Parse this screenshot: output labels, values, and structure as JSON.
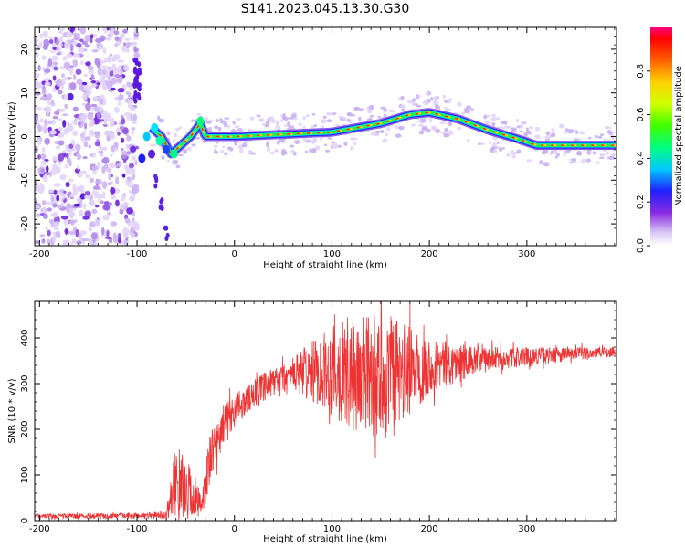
{
  "title": "S141.2023.045.13.30.G30",
  "chart_data": [
    {
      "type": "heatmap",
      "xlabel": "Height of straight line (km)",
      "ylabel": "Frequency (Hz)",
      "xlim": [
        -205,
        392
      ],
      "ylim": [
        -25,
        25
      ],
      "xticks": [
        -200,
        -100,
        0,
        100,
        200,
        300
      ],
      "yticks": [
        -20,
        -10,
        0,
        10,
        20
      ],
      "colorbar": {
        "label": "Normalized spectral amplitude",
        "ticks": [
          0.0,
          0.2,
          0.4,
          0.6,
          0.8
        ],
        "range": [
          0,
          1
        ]
      },
      "noise_region_x": [
        -205,
        -100
      ],
      "ridge": [
        {
          "x": -85,
          "y": 2
        },
        {
          "x": -75,
          "y": 0
        },
        {
          "x": -65,
          "y": -4
        },
        {
          "x": -55,
          "y": -2
        },
        {
          "x": -45,
          "y": 0
        },
        {
          "x": -35,
          "y": 3
        },
        {
          "x": -30,
          "y": 0
        },
        {
          "x": 0,
          "y": 0
        },
        {
          "x": 50,
          "y": 0.5
        },
        {
          "x": 100,
          "y": 1
        },
        {
          "x": 150,
          "y": 3
        },
        {
          "x": 180,
          "y": 5
        },
        {
          "x": 200,
          "y": 5.5
        },
        {
          "x": 230,
          "y": 4
        },
        {
          "x": 260,
          "y": 1.5
        },
        {
          "x": 290,
          "y": -0.5
        },
        {
          "x": 310,
          "y": -2
        },
        {
          "x": 350,
          "y": -2
        },
        {
          "x": 392,
          "y": -2
        }
      ],
      "branch": [
        {
          "x": -80,
          "y": -10
        },
        {
          "x": -75,
          "y": -15
        },
        {
          "x": -70,
          "y": -22
        }
      ]
    },
    {
      "type": "line",
      "xlabel": "Height of straight line (km)",
      "ylabel": "SNR (10 * v/v)",
      "xlim": [
        -205,
        392
      ],
      "ylim": [
        0,
        480
      ],
      "xticks": [
        -200,
        -100,
        0,
        100,
        200,
        300
      ],
      "yticks": [
        0,
        100,
        200,
        300,
        400
      ],
      "series": [
        {
          "color": "#ef3333",
          "envelope": [
            {
              "x": -205,
              "mean": 10,
              "amp": 5
            },
            {
              "x": -120,
              "mean": 10,
              "amp": 6
            },
            {
              "x": -70,
              "mean": 12,
              "amp": 8
            },
            {
              "x": -60,
              "mean": 90,
              "amp": 80
            },
            {
              "x": -45,
              "mean": 60,
              "amp": 60
            },
            {
              "x": -35,
              "mean": 30,
              "amp": 30
            },
            {
              "x": -25,
              "mean": 130,
              "amp": 60
            },
            {
              "x": -10,
              "mean": 220,
              "amp": 40
            },
            {
              "x": 20,
              "mean": 280,
              "amp": 30
            },
            {
              "x": 60,
              "mean": 320,
              "amp": 40
            },
            {
              "x": 90,
              "mean": 330,
              "amp": 80
            },
            {
              "x": 120,
              "mean": 320,
              "amp": 130
            },
            {
              "x": 160,
              "mean": 310,
              "amp": 140
            },
            {
              "x": 200,
              "mean": 340,
              "amp": 60
            },
            {
              "x": 250,
              "mean": 350,
              "amp": 30
            },
            {
              "x": 300,
              "mean": 360,
              "amp": 20
            },
            {
              "x": 350,
              "mean": 365,
              "amp": 15
            },
            {
              "x": 392,
              "mean": 370,
              "amp": 12
            }
          ]
        }
      ]
    }
  ]
}
